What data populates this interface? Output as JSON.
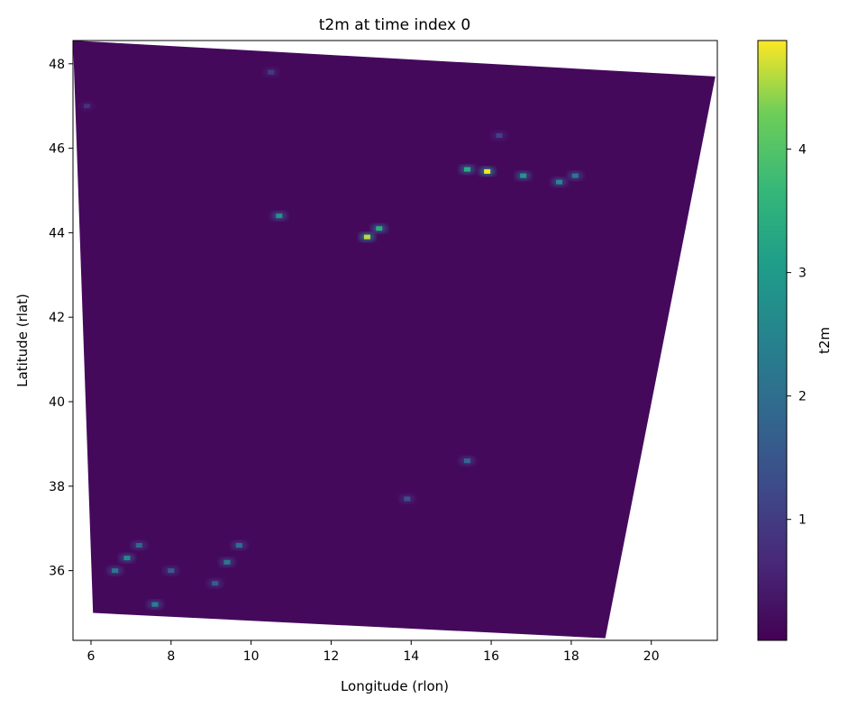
{
  "chart_data": {
    "type": "heatmap",
    "title": "t2m at time index 0",
    "xlabel": "Longitude (rlon)",
    "ylabel": "Latitude (rlat)",
    "xlim": [
      5.55,
      21.65
    ],
    "ylim": [
      34.35,
      48.55
    ],
    "x_ticks": [
      6,
      8,
      10,
      12,
      14,
      16,
      18,
      20
    ],
    "y_ticks": [
      36,
      38,
      40,
      42,
      44,
      46,
      48
    ],
    "colormap": "viridis",
    "colorbar": {
      "label": "t2m",
      "range": [
        0.02,
        4.88
      ],
      "ticks": [
        1,
        2,
        3,
        4
      ]
    },
    "domain_corners": [
      [
        5.55,
        48.55
      ],
      [
        21.6,
        47.7
      ],
      [
        18.85,
        34.4
      ],
      [
        6.05,
        35.0
      ]
    ],
    "background_value": 0.15,
    "hotspots": [
      {
        "lon": 12.9,
        "lat": 43.9,
        "value": 4.6
      },
      {
        "lon": 13.2,
        "lat": 44.1,
        "value": 3.4
      },
      {
        "lon": 15.9,
        "lat": 45.45,
        "value": 4.85
      },
      {
        "lon": 15.4,
        "lat": 45.5,
        "value": 3.4
      },
      {
        "lon": 16.8,
        "lat": 45.35,
        "value": 2.9
      },
      {
        "lon": 17.7,
        "lat": 45.2,
        "value": 2.6
      },
      {
        "lon": 18.1,
        "lat": 45.35,
        "value": 2.2
      },
      {
        "lon": 10.7,
        "lat": 44.4,
        "value": 2.8
      },
      {
        "lon": 6.9,
        "lat": 36.3,
        "value": 2.6
      },
      {
        "lon": 6.6,
        "lat": 36.0,
        "value": 2.2
      },
      {
        "lon": 7.6,
        "lat": 35.2,
        "value": 2.4
      },
      {
        "lon": 7.2,
        "lat": 36.6,
        "value": 1.8
      },
      {
        "lon": 8.0,
        "lat": 36.0,
        "value": 1.6
      },
      {
        "lon": 9.4,
        "lat": 36.2,
        "value": 2.2
      },
      {
        "lon": 9.7,
        "lat": 36.6,
        "value": 2.0
      },
      {
        "lon": 9.1,
        "lat": 35.7,
        "value": 1.6
      },
      {
        "lon": 15.4,
        "lat": 38.6,
        "value": 1.8
      },
      {
        "lon": 13.9,
        "lat": 37.7,
        "value": 1.4
      },
      {
        "lon": 16.2,
        "lat": 46.3,
        "value": 1.1
      },
      {
        "lon": 10.5,
        "lat": 47.8,
        "value": 1.0
      },
      {
        "lon": 5.9,
        "lat": 47.0,
        "value": 0.8
      }
    ]
  }
}
